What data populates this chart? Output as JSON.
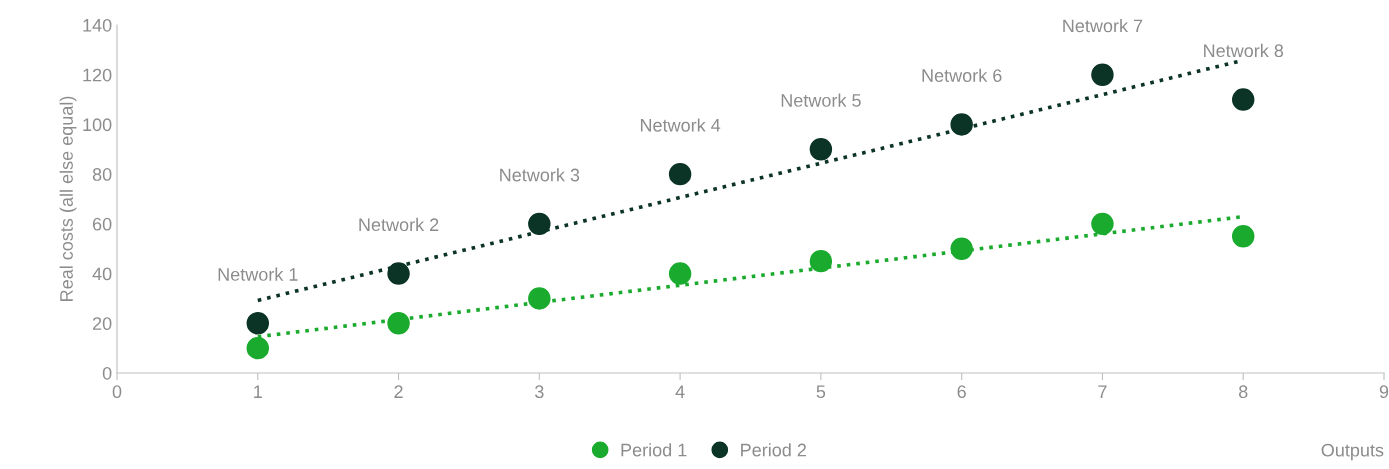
{
  "chart_data": {
    "type": "scatter",
    "xlabel": "Outputs",
    "ylabel": "Real costs (all else equal)",
    "x": [
      1,
      2,
      3,
      4,
      5,
      6,
      7,
      8
    ],
    "series": [
      {
        "name": "Period 1",
        "color": "#1aab2e",
        "marker": "circle",
        "values": [
          10,
          20,
          30,
          40,
          45,
          50,
          60,
          55
        ]
      },
      {
        "name": "Period 2",
        "color": "#0b3326",
        "marker": "circle",
        "values": [
          20,
          40,
          60,
          80,
          90,
          100,
          120,
          110
        ]
      },
      {
        "type": "line",
        "color": "#1aab2e",
        "values": [
          14.6,
          21.5,
          28.4,
          35.3,
          42.2,
          49.1,
          56.0,
          62.9
        ],
        "line_style": "dotted"
      },
      {
        "type": "line",
        "color": "#0b3326",
        "values": [
          29.2,
          43.0,
          56.8,
          70.6,
          84.4,
          98.2,
          112.0,
          125.8
        ],
        "line_style": "dotted"
      }
    ],
    "annotations": [
      {
        "text": "Network 1",
        "x": 1,
        "y": 20
      },
      {
        "text": "Network 2",
        "x": 2,
        "y": 40
      },
      {
        "text": "Network 3",
        "x": 3,
        "y": 60
      },
      {
        "text": "Network 4",
        "x": 4,
        "y": 80
      },
      {
        "text": "Network 5",
        "x": 5,
        "y": 90
      },
      {
        "text": "Network 6",
        "x": 6,
        "y": 100
      },
      {
        "text": "Network 7",
        "x": 7,
        "y": 120
      },
      {
        "text": "Network 8",
        "x": 8,
        "y": 110
      }
    ],
    "xlim": [
      0,
      9
    ],
    "xticks": [
      0,
      1,
      2,
      3,
      4,
      5,
      6,
      7,
      8,
      9
    ],
    "ylim": [
      0,
      140
    ],
    "yticks": [
      0,
      20,
      40,
      60,
      80,
      100,
      120,
      140
    ],
    "grid": false,
    "legend": "bottom"
  }
}
